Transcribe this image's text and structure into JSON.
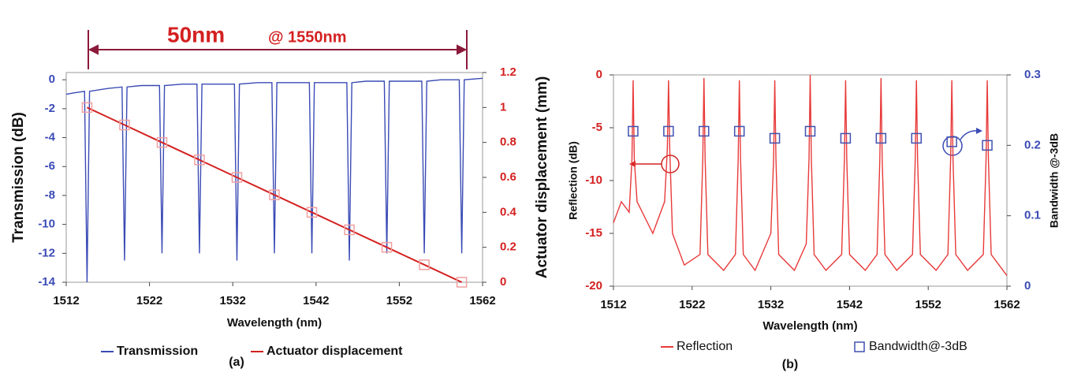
{
  "chart_data": [
    {
      "type": "line",
      "annotation": "50nm",
      "annotation_sub": "@ 1550nm",
      "panel_label": "(a)",
      "xlabel": "Wavelength (nm)",
      "ylabel": "Transmission (dB)",
      "y2label": "Actuator displacement (mm)",
      "xlim": [
        1512,
        1562
      ],
      "xticks": [
        1512,
        1522,
        1532,
        1542,
        1552,
        1562
      ],
      "ylim": [
        -14,
        0.5
      ],
      "yticks": [
        -14,
        -12,
        -10,
        -8,
        -6,
        -4,
        -2,
        0
      ],
      "ytick_color": "#3a4bb5",
      "y2lim": [
        0,
        1.2
      ],
      "y2ticks": [
        0,
        0.2,
        0.4,
        0.6,
        0.8,
        1,
        1.2
      ],
      "y2tick_color": "#d42020",
      "series": [
        {
          "name": "Transmission",
          "color": "#3a4bb5",
          "line": true,
          "x": [
            1512,
            1513,
            1514.2,
            1514.5,
            1514.8,
            1517,
            1518.7,
            1519,
            1519.3,
            1521,
            1523.2,
            1523.5,
            1523.8,
            1526,
            1527.7,
            1528,
            1528.3,
            1530,
            1532.2,
            1532.5,
            1532.8,
            1535,
            1536.7,
            1537,
            1537.3,
            1539,
            1541.2,
            1541.5,
            1541.8,
            1544,
            1545.7,
            1546,
            1546.3,
            1548,
            1550.2,
            1550.5,
            1550.8,
            1553,
            1554.7,
            1555,
            1555.3,
            1557,
            1559.2,
            1559.5,
            1559.8,
            1562
          ],
          "values": [
            -1.0,
            -0.9,
            -0.8,
            -14,
            -0.8,
            -0.6,
            -0.5,
            -12.5,
            -0.5,
            -0.4,
            -0.4,
            -12,
            -0.4,
            -0.3,
            -0.3,
            -12,
            -0.3,
            -0.3,
            -0.3,
            -12.5,
            -0.3,
            -0.2,
            -0.2,
            -12,
            -0.2,
            -0.2,
            -0.2,
            -12,
            -0.2,
            -0.2,
            -0.2,
            -12.5,
            -0.2,
            -0.1,
            -0.1,
            -12,
            -0.1,
            -0.1,
            -0.1,
            -12,
            -0.1,
            0,
            0,
            -12,
            0,
            0.1
          ]
        },
        {
          "name": "Actuator displacement",
          "color": "#d42020",
          "marker_color": "#f0a0a0",
          "marker": "square",
          "line": true,
          "axis": "y2",
          "x": [
            1514.5,
            1519,
            1523.5,
            1528,
            1532.5,
            1537,
            1541.5,
            1546,
            1550.5,
            1555,
            1559.5
          ],
          "values": [
            1.0,
            0.9,
            0.8,
            0.7,
            0.6,
            0.5,
            0.4,
            0.3,
            0.2,
            0.1,
            0
          ]
        }
      ]
    },
    {
      "type": "line",
      "panel_label": "(b)",
      "xlabel": "Wavelength (nm)",
      "ylabel": "Reflection (dB)",
      "y2label": "Bandwidth @-3dB",
      "xlim": [
        1512,
        1562
      ],
      "xticks": [
        1512,
        1522,
        1532,
        1542,
        1552,
        1562
      ],
      "ylim": [
        -20,
        0
      ],
      "yticks": [
        -20,
        -15,
        -10,
        -5,
        0
      ],
      "ytick_color": "#d42020",
      "y2lim": [
        0,
        0.3
      ],
      "y2ticks": [
        0,
        0.1,
        0.2,
        0.3
      ],
      "y2tick_color": "#3a4bb5",
      "series": [
        {
          "name": "Reflection",
          "color": "#e83a3a",
          "line": true,
          "x": [
            1512,
            1513,
            1514,
            1514.35,
            1514.5,
            1514.65,
            1515,
            1517,
            1518.5,
            1518.85,
            1519,
            1519.15,
            1519.5,
            1521,
            1523,
            1523.35,
            1523.5,
            1523.65,
            1524,
            1526,
            1527.5,
            1527.85,
            1528,
            1528.15,
            1528.5,
            1530,
            1532,
            1532.35,
            1532.5,
            1532.65,
            1533,
            1535,
            1536.5,
            1536.85,
            1537,
            1537.15,
            1537.5,
            1539,
            1541,
            1541.35,
            1541.5,
            1541.65,
            1542,
            1544,
            1545.5,
            1545.85,
            1546,
            1546.15,
            1546.5,
            1548,
            1550,
            1550.35,
            1550.5,
            1550.65,
            1551,
            1553,
            1554.5,
            1554.85,
            1555,
            1555.15,
            1555.5,
            1557,
            1559,
            1559.35,
            1559.5,
            1559.65,
            1560,
            1562
          ],
          "values": [
            -14,
            -12,
            -13,
            -8,
            -0.5,
            -8,
            -12,
            -15,
            -12,
            -7,
            -0.5,
            -7,
            -15,
            -18,
            -17,
            -8,
            -0.3,
            -8,
            -17,
            -18.5,
            -17,
            -8,
            -0.5,
            -8,
            -17,
            -18.5,
            -15,
            -8,
            -0.5,
            -8,
            -17,
            -18.5,
            -16,
            -8,
            0,
            -8,
            -17,
            -18.5,
            -17,
            -8,
            -0.5,
            -8,
            -17,
            -18.5,
            -17,
            -8,
            -0.3,
            -8,
            -17,
            -18.5,
            -17,
            -8,
            -0.5,
            -8,
            -17,
            -18.5,
            -17,
            -8,
            -0.5,
            -8,
            -17,
            -18.5,
            -17,
            -8,
            -0.5,
            -8,
            -17,
            -19
          ]
        },
        {
          "name": "Bandwidth@-3dB",
          "color": "#4050b0",
          "marker_color": "#4050b0",
          "marker": "square",
          "line": false,
          "axis": "y2",
          "x": [
            1514.5,
            1519,
            1523.5,
            1528,
            1532.5,
            1537,
            1541.5,
            1546,
            1550.5,
            1555,
            1559.5
          ],
          "values": [
            0.22,
            0.22,
            0.22,
            0.22,
            0.21,
            0.22,
            0.21,
            0.21,
            0.21,
            0.205,
            0.2
          ]
        }
      ]
    }
  ]
}
